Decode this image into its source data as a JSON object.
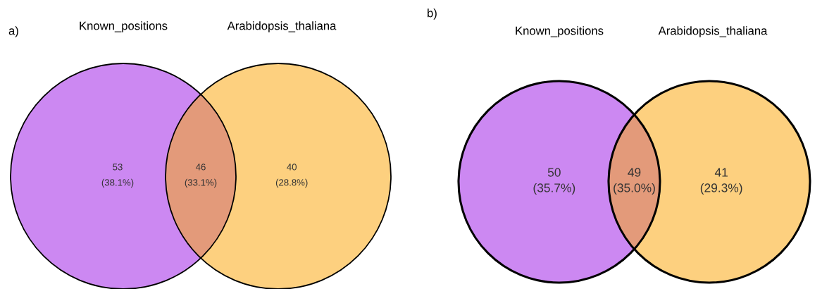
{
  "chart_data": [
    {
      "type": "other",
      "title": "a)",
      "annotations": [
        "Known_positions",
        "Arabidopsis_thaliana",
        "(38.1%)",
        "(33.1%)",
        "(28.8%)"
      ],
      "categories": [
        null,
        null,
        null
      ],
      "values": [
        53,
        46,
        40
      ],
      "data_labels": true,
      "colors": [
        "#cc88f2",
        "#e39a7a",
        "#fdd07f"
      ]
    },
    {
      "type": "other",
      "title": "b)",
      "annotations": [
        "Known_positions",
        "Arabidopsis_thaliana",
        "(35.7%)",
        "(35.0%)",
        "(29.3%)"
      ],
      "categories": [
        null,
        null,
        null
      ],
      "values": [
        50,
        49,
        41
      ],
      "data_labels": true,
      "colors": [
        "#cc88f2",
        "#e39a7a",
        "#fdd07f"
      ]
    }
  ]
}
